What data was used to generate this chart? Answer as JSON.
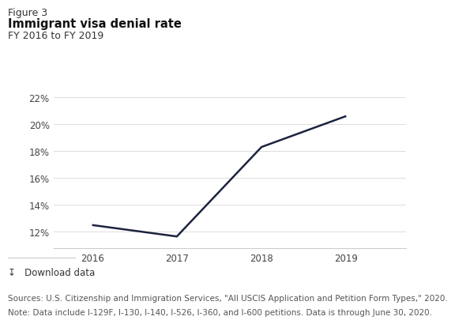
{
  "figure_label": "Figure 3",
  "title": "Immigrant visa denial rate",
  "subtitle": "FY 2016 to FY 2019",
  "x_values": [
    2016,
    2017,
    2018,
    2019
  ],
  "y_values": [
    0.125,
    0.1165,
    0.183,
    0.206
  ],
  "line_color": "#1c2340",
  "line_width": 1.8,
  "ylim": [
    0.108,
    0.228
  ],
  "yticks": [
    0.12,
    0.14,
    0.16,
    0.18,
    0.2,
    0.22
  ],
  "ytick_labels": [
    "12%",
    "14%",
    "16%",
    "18%",
    "20%",
    "22%"
  ],
  "xticks": [
    2016,
    2017,
    2018,
    2019
  ],
  "xlim": [
    2015.55,
    2019.7
  ],
  "background_color": "#ffffff",
  "source_text": "Sources: U.S. Citizenship and Immigration Services, \"All USCIS Application and Petition Form Types,\" 2020.",
  "note_text": "Note: Data include I-129F, I-130, I-140, I-526, I-360, and I-600 petitions. Data is through June 30, 2020.",
  "download_text": "↧   Download data",
  "figure_label_fontsize": 9,
  "title_fontsize": 10.5,
  "subtitle_fontsize": 9,
  "tick_fontsize": 8.5,
  "footer_fontsize": 7.5
}
